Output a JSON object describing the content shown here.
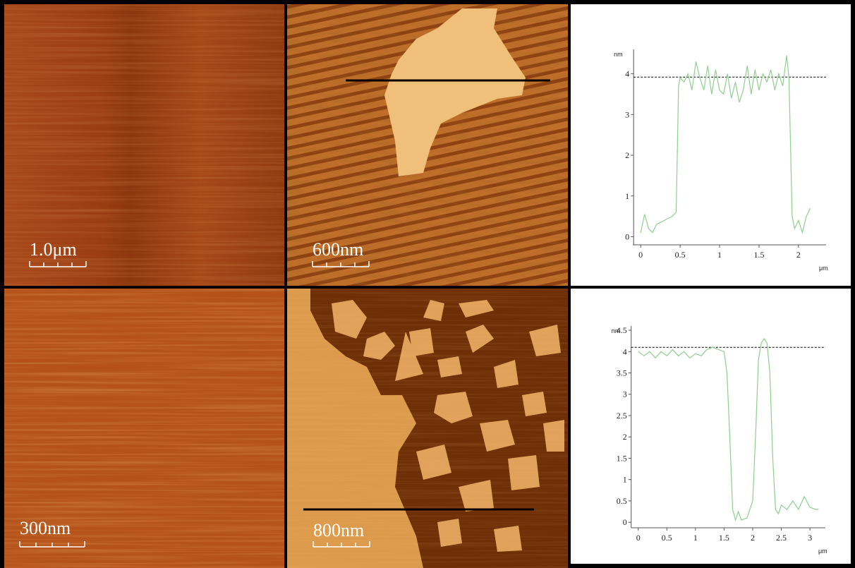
{
  "images": [
    {
      "scale_label": "1.0μm"
    },
    {
      "scale_label": "600nm"
    },
    {
      "scale_label": "300nm"
    },
    {
      "scale_label": "800nm"
    }
  ],
  "chart_data": [
    {
      "type": "line",
      "y_label": "nm",
      "x_label": "μm",
      "x": [
        0,
        0.05,
        0.1,
        0.15,
        0.2,
        0.25,
        0.3,
        0.35,
        0.4,
        0.45,
        0.48,
        0.5,
        0.55,
        0.6,
        0.65,
        0.7,
        0.75,
        0.8,
        0.85,
        0.9,
        0.95,
        1.0,
        1.05,
        1.1,
        1.15,
        1.2,
        1.25,
        1.3,
        1.35,
        1.4,
        1.45,
        1.5,
        1.55,
        1.6,
        1.65,
        1.7,
        1.75,
        1.8,
        1.85,
        1.88,
        1.92,
        1.95,
        2.0,
        2.05,
        2.1,
        2.15
      ],
      "series": [
        {
          "color": "#8fcf8f",
          "values": [
            0.1,
            0.55,
            0.2,
            0.1,
            0.3,
            0.35,
            0.4,
            0.45,
            0.5,
            0.6,
            3.7,
            3.9,
            3.8,
            4.0,
            3.6,
            4.3,
            3.9,
            3.6,
            4.2,
            3.5,
            4.1,
            3.6,
            3.5,
            4.0,
            3.4,
            3.8,
            3.3,
            3.6,
            4.2,
            3.5,
            4.1,
            3.6,
            4.0,
            3.8,
            4.1,
            3.6,
            4.0,
            3.7,
            4.45,
            3.9,
            0.5,
            0.2,
            0.4,
            0.1,
            0.5,
            0.7
          ]
        }
      ],
      "reference_line": 3.92,
      "xlim": [
        -0.1,
        2.35
      ],
      "ylim": [
        -0.2,
        4.6
      ],
      "xticks": [
        0,
        0.5,
        1,
        1.5,
        2
      ],
      "yticks": [
        0,
        1,
        2,
        3,
        4
      ]
    },
    {
      "type": "line",
      "y_label": "nm",
      "x_label": "μm",
      "x": [
        0,
        0.1,
        0.2,
        0.3,
        0.4,
        0.5,
        0.6,
        0.7,
        0.8,
        0.9,
        1.0,
        1.1,
        1.2,
        1.3,
        1.4,
        1.5,
        1.55,
        1.6,
        1.65,
        1.7,
        1.75,
        1.8,
        1.9,
        2.0,
        2.05,
        2.1,
        2.15,
        2.2,
        2.25,
        2.3,
        2.35,
        2.4,
        2.45,
        2.5,
        2.6,
        2.7,
        2.8,
        2.9,
        3.0,
        3.1,
        3.15
      ],
      "series": [
        {
          "color": "#8fcf8f",
          "values": [
            4.0,
            3.9,
            4.0,
            3.85,
            4.0,
            3.9,
            4.05,
            3.9,
            4.0,
            3.85,
            3.95,
            3.9,
            4.05,
            4.1,
            4.05,
            4.0,
            3.5,
            2.0,
            0.3,
            0.05,
            0.25,
            0.05,
            0.1,
            0.5,
            2.0,
            3.8,
            4.2,
            4.3,
            4.2,
            3.5,
            1.5,
            0.3,
            0.2,
            0.4,
            0.3,
            0.5,
            0.3,
            0.6,
            0.35,
            0.3,
            0.3
          ]
        }
      ],
      "reference_line": 4.1,
      "xlim": [
        -0.12,
        3.27
      ],
      "ylim": [
        -0.13,
        4.6
      ],
      "xticks": [
        0,
        0.5,
        1,
        1.5,
        2,
        2.5,
        3
      ],
      "yticks": [
        0,
        0.5,
        1,
        1.5,
        2,
        2.5,
        3,
        3.5,
        4,
        4.5
      ]
    }
  ]
}
